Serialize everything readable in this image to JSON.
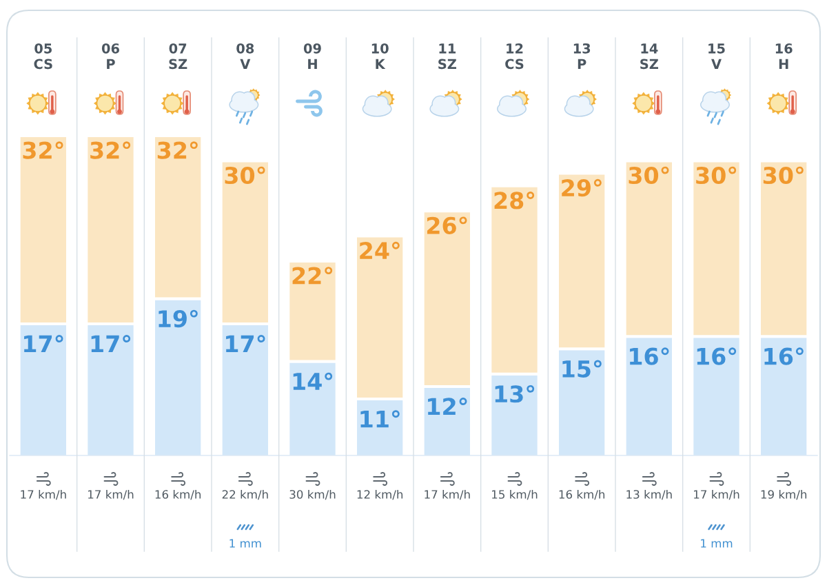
{
  "chart_data": {
    "type": "bar",
    "stacked": true,
    "tick_labels": "x",
    "categories": [
      "05\nCS",
      "06\nP",
      "07\nSZ",
      "08\nV",
      "09\nH",
      "10\nK",
      "11\nSZ",
      "12\nCS",
      "13\nP",
      "14\nSZ",
      "15\nV",
      "16\nH"
    ],
    "series": [
      {
        "color": "#d2e7f9",
        "values": [
          17,
          17,
          19,
          17,
          14,
          11,
          12,
          13,
          15,
          16,
          16,
          16
        ],
        "value_labels": [
          "17°",
          "17°",
          "19°",
          "17°",
          "14°",
          "11°",
          "12°",
          "13°",
          "15°",
          "16°",
          "16°",
          "16°"
        ]
      },
      {
        "color": "#fbe6c2",
        "values": [
          15,
          15,
          13,
          13,
          8,
          13,
          14,
          15,
          14,
          14,
          14,
          14
        ]
      }
    ],
    "totals": [
      "32°",
      "32°",
      "32°",
      "30°",
      "22°",
      "24°",
      "26°",
      "28°",
      "29°",
      "30°",
      "30°",
      "30°"
    ],
    "ylim": [
      6.5,
      32
    ],
    "annotations": [
      "17 km/h",
      "17 km/h",
      "16 km/h",
      "22 km/h\n1 mm",
      "30 km/h",
      "12 km/h",
      "17 km/h",
      "15 km/h",
      "16 km/h",
      "13 km/h",
      "17 km/h\n1 mm",
      "19 km/h"
    ]
  }
}
